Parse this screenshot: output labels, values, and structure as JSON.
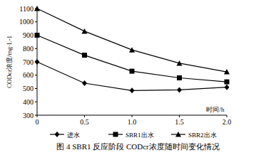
{
  "chart_data": {
    "type": "line",
    "title": "图 4 SBR1 反应阶段 CODcr浓度随时间变化情况",
    "x_label": "时间/h",
    "y_label": "CODcr浓度/mg·L-1",
    "x": [
      0,
      0.5,
      1,
      1.5,
      2
    ],
    "xlim": [
      0,
      2
    ],
    "xticks": [
      0,
      0.5,
      {
        "value": 1,
        "label": "1.0"
      },
      1.5,
      {
        "value": 2,
        "label": "2.0"
      }
    ],
    "ylim": [
      300,
      1100
    ],
    "yticks": [
      300,
      400,
      500,
      600,
      700,
      800,
      900,
      1000,
      1100
    ],
    "grid": false,
    "legend": "bottom",
    "series": [
      {
        "name": "进水",
        "color": "#000000",
        "marker": "diamond",
        "values": [
          700,
          540,
          485,
          490,
          510
        ]
      },
      {
        "name": "SBR1出水",
        "color": "#000000",
        "marker": "square",
        "values": [
          900,
          750,
          630,
          580,
          550
        ]
      },
      {
        "name": "SBR2出水",
        "color": "#000000",
        "marker": "triangle",
        "values": [
          1100,
          930,
          790,
          690,
          625
        ]
      }
    ]
  }
}
